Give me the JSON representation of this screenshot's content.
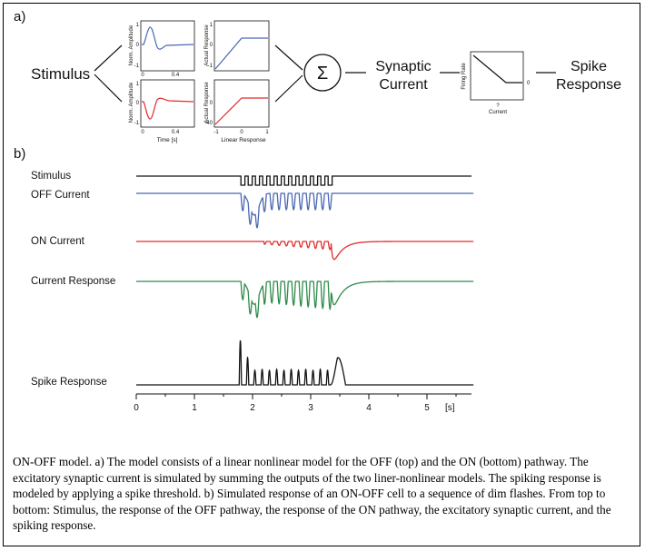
{
  "panel_a": {
    "label": "a)",
    "stimulus_label": "Stimulus",
    "sum_symbol": "Σ",
    "synaptic_label_1": "Synaptic",
    "synaptic_label_2": "Current",
    "spike_label_1": "Spike",
    "spike_label_2": "Response",
    "top_filter": {
      "ylabel": "Norm. Amplitude",
      "yticks": [
        "1",
        "0",
        "-1"
      ],
      "xticks": [
        "0",
        "0.4"
      ]
    },
    "top_nonlin": {
      "ylabel": "Actual Response",
      "yticks": [
        "1",
        "0",
        "-1"
      ],
      "xticks": []
    },
    "bottom_filter": {
      "ylabel": "Norm. Amplitude",
      "yticks": [
        "1",
        "0",
        "-1"
      ],
      "xticks": [
        "0",
        "0.4"
      ],
      "xlabel": "Time [s]"
    },
    "bottom_nonlin": {
      "ylabel": "Actual Response",
      "yticks": [
        "0",
        "-40"
      ],
      "xticks": [
        "-1",
        "0",
        "1"
      ],
      "xlabel": "Linear Response"
    },
    "firing_plot": {
      "ylabel": "Firing Rate",
      "xlabel": "Current",
      "xtick": "?",
      "ytick": "0"
    }
  },
  "panel_b": {
    "label": "b)",
    "traces": [
      {
        "name": "Stimulus",
        "color": "#111111"
      },
      {
        "name": "OFF Current",
        "color": "#4a67b3"
      },
      {
        "name": "ON Current",
        "color": "#e32b2b"
      },
      {
        "name": "Current Response",
        "color": "#2e8b4a"
      },
      {
        "name": "Spike Response",
        "color": "#111111"
      }
    ],
    "time_axis": {
      "ticks": [
        "0",
        "1",
        "2",
        "3",
        "4",
        "5"
      ],
      "unit": "[s]"
    }
  },
  "caption": "ON-OFF model. a) The model consists of a linear nonlinear model for the OFF (top) and the ON (bottom) pathway. The excitatory synaptic current is simulated by summing the outputs of the two liner-nonlinear models. The spiking response is modeled by applying a spike threshold. b) Simulated response of an ON-OFF cell to a sequence of dim flashes. From top to bottom: Stimulus, the response of the OFF pathway, the response of the ON pathway, the excitatory synaptic current, and the spiking response."
}
